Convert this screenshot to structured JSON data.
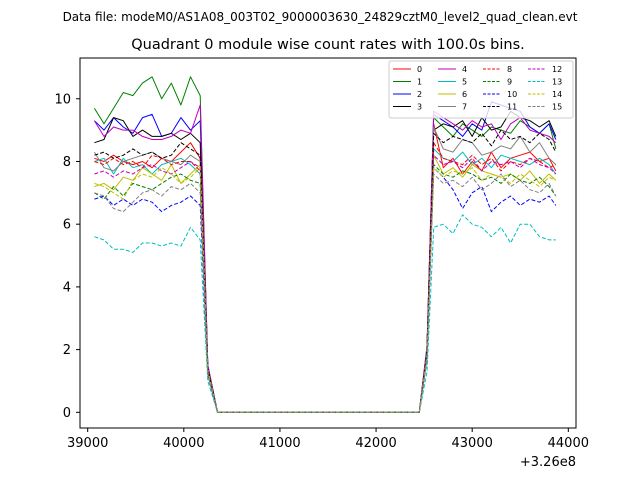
{
  "suptitle": "Data file: modeM0/AS1A08_003T02_9000003630_24829cztM0_level2_quad_clean.evt",
  "chart_data": {
    "type": "line",
    "title": "Quadrant 0 module wise count rates with 100.0s bins.",
    "xlabel": "",
    "ylabel": "",
    "x_offset_label": "+3.26e8",
    "xlim": [
      38920,
      44080
    ],
    "ylim": [
      -0.5,
      11.3
    ],
    "xticks": [
      39000,
      40000,
      41000,
      42000,
      43000,
      44000
    ],
    "xtick_labels": [
      "39000",
      "40000",
      "41000",
      "42000",
      "43000",
      "44000"
    ],
    "yticks": [
      0,
      2,
      4,
      6,
      8,
      10
    ],
    "ytick_labels": [
      "0",
      "2",
      "4",
      "6",
      "8",
      "10"
    ],
    "grid": false,
    "legend": {
      "placement": "top-right",
      "columns": 4
    },
    "x": [
      39070,
      39170,
      39270,
      39370,
      39470,
      39570,
      39670,
      39770,
      39870,
      39970,
      40070,
      40170,
      40250,
      40350,
      42350,
      42450,
      42530,
      42600,
      42700,
      42800,
      42900,
      43000,
      43100,
      43200,
      43300,
      43400,
      43500,
      43600,
      43700,
      43800,
      43870
    ],
    "series": [
      {
        "name": "0",
        "color": "#ff0000",
        "dash": "solid",
        "values": [
          8.1,
          8.0,
          8.2,
          8.0,
          7.9,
          8.0,
          7.8,
          8.1,
          8.0,
          8.3,
          8.6,
          8.1,
          1.4,
          0,
          0,
          0,
          2.0,
          9.2,
          7.8,
          8.1,
          7.6,
          8.0,
          7.7,
          8.3,
          7.8,
          8.1,
          8.2,
          8.3,
          8.0,
          8.1,
          7.7
        ]
      },
      {
        "name": "1",
        "color": "#008000",
        "dash": "solid",
        "values": [
          9.7,
          9.2,
          9.7,
          10.2,
          10.1,
          10.5,
          10.7,
          10.0,
          10.5,
          9.8,
          10.7,
          10.1,
          1.5,
          0,
          0,
          0,
          2.1,
          9.4,
          9.1,
          8.8,
          9.2,
          9.0,
          8.8,
          9.1,
          9.0,
          8.9,
          9.3,
          9.1,
          8.9,
          9.2,
          8.4
        ]
      },
      {
        "name": "2",
        "color": "#0000ff",
        "dash": "solid",
        "values": [
          9.3,
          9.0,
          9.4,
          9.1,
          8.9,
          9.4,
          9.5,
          8.8,
          8.9,
          9.4,
          9.0,
          9.3,
          1.5,
          0,
          0,
          0,
          2.0,
          9.5,
          9.3,
          9.1,
          8.8,
          9.2,
          9.0,
          9.9,
          9.8,
          9.7,
          9.6,
          9.1,
          8.9,
          9.2,
          8.7
        ]
      },
      {
        "name": "3",
        "color": "#000000",
        "dash": "solid",
        "values": [
          8.6,
          8.7,
          9.4,
          9.3,
          8.8,
          9.0,
          8.8,
          8.8,
          8.9,
          8.7,
          8.9,
          8.6,
          1.4,
          0,
          0,
          0,
          2.0,
          9.0,
          9.2,
          9.1,
          9.3,
          8.8,
          9.4,
          9.0,
          9.1,
          9.6,
          9.4,
          9.3,
          9.1,
          9.3,
          8.8
        ]
      },
      {
        "name": "4",
        "color": "#bf00bf",
        "dash": "solid",
        "values": [
          9.3,
          8.8,
          9.1,
          9.0,
          9.0,
          8.8,
          8.7,
          8.7,
          8.8,
          9.0,
          8.9,
          9.8,
          1.5,
          0,
          0,
          0,
          2.1,
          9.6,
          9.4,
          9.2,
          9.0,
          9.3,
          9.1,
          9.2,
          8.7,
          9.2,
          9.4,
          9.0,
          8.9,
          8.8,
          8.6
        ]
      },
      {
        "name": "5",
        "color": "#00bfbf",
        "dash": "solid",
        "values": [
          8.0,
          8.1,
          7.6,
          8.1,
          7.8,
          7.9,
          7.6,
          7.9,
          8.0,
          8.1,
          7.9,
          7.6,
          1.3,
          0,
          0,
          0,
          1.8,
          8.4,
          8.1,
          8.0,
          8.3,
          7.9,
          8.1,
          7.8,
          8.2,
          8.1,
          8.0,
          7.9,
          8.1,
          7.9,
          7.6
        ]
      },
      {
        "name": "6",
        "color": "#bfbf00",
        "dash": "solid",
        "values": [
          7.2,
          7.3,
          7.1,
          7.5,
          7.4,
          7.8,
          7.6,
          7.4,
          7.9,
          7.3,
          7.6,
          7.9,
          1.3,
          0,
          0,
          0,
          1.8,
          8.2,
          7.6,
          7.8,
          7.5,
          7.9,
          7.7,
          7.6,
          7.5,
          7.6,
          7.4,
          7.7,
          7.3,
          7.6,
          7.4
        ]
      },
      {
        "name": "7",
        "color": "#808080",
        "dash": "solid",
        "values": [
          8.3,
          7.8,
          7.7,
          8.0,
          8.1,
          8.2,
          8.3,
          8.1,
          8.0,
          7.9,
          8.2,
          8.0,
          1.4,
          0,
          0,
          0,
          2.0,
          9.1,
          8.4,
          8.3,
          8.7,
          8.6,
          8.2,
          8.3,
          8.5,
          8.4,
          8.8,
          8.3,
          8.6,
          8.1,
          7.9
        ]
      },
      {
        "name": "8",
        "color": "#ff0000",
        "dash": "dashed",
        "values": [
          8.0,
          7.9,
          8.1,
          7.9,
          8.0,
          7.8,
          8.2,
          8.1,
          7.9,
          8.0,
          8.0,
          7.7,
          1.3,
          0,
          0,
          0,
          1.9,
          8.6,
          8.1,
          8.0,
          7.9,
          8.2,
          7.9,
          8.1,
          7.7,
          8.0,
          7.9,
          8.1,
          8.0,
          7.8,
          7.9
        ]
      },
      {
        "name": "9",
        "color": "#008000",
        "dash": "dashed",
        "values": [
          7.0,
          6.8,
          7.2,
          6.9,
          7.3,
          7.2,
          7.1,
          7.3,
          7.5,
          7.6,
          7.4,
          7.3,
          1.2,
          0,
          0,
          0,
          1.7,
          7.9,
          7.6,
          7.5,
          7.7,
          7.6,
          7.4,
          7.5,
          7.3,
          7.6,
          7.4,
          7.3,
          7.5,
          7.2,
          6.9
        ]
      },
      {
        "name": "10",
        "color": "#0000ff",
        "dash": "dashed",
        "values": [
          6.8,
          6.9,
          6.6,
          6.8,
          6.6,
          6.8,
          6.7,
          6.4,
          6.6,
          6.7,
          6.9,
          6.6,
          1.2,
          0,
          0,
          0,
          1.7,
          7.8,
          7.5,
          7.1,
          6.5,
          7.0,
          7.2,
          6.4,
          6.7,
          6.9,
          6.6,
          6.8,
          6.7,
          6.9,
          6.6
        ]
      },
      {
        "name": "11",
        "color": "#000000",
        "dash": "dashed",
        "values": [
          8.2,
          8.3,
          8.1,
          8.2,
          8.4,
          8.2,
          8.3,
          8.1,
          8.2,
          8.6,
          8.4,
          8.2,
          1.4,
          0,
          0,
          0,
          2.0,
          8.9,
          8.6,
          8.8,
          8.7,
          8.6,
          8.9,
          8.5,
          9.0,
          8.7,
          8.8,
          8.6,
          8.9,
          8.7,
          8.3
        ]
      },
      {
        "name": "12",
        "color": "#bf00bf",
        "dash": "dashed",
        "values": [
          7.6,
          7.7,
          7.5,
          7.7,
          7.6,
          7.8,
          7.9,
          7.7,
          7.6,
          7.8,
          8.0,
          7.8,
          1.3,
          0,
          0,
          0,
          1.9,
          8.2,
          7.9,
          8.0,
          7.8,
          8.1,
          7.7,
          8.0,
          7.9,
          8.0,
          7.8,
          8.1,
          7.9,
          7.8,
          7.6
        ]
      },
      {
        "name": "13",
        "color": "#00bfbf",
        "dash": "dashed",
        "values": [
          5.6,
          5.5,
          5.2,
          5.2,
          5.1,
          5.4,
          5.4,
          5.3,
          5.4,
          5.3,
          5.9,
          5.5,
          1.0,
          0,
          0,
          0,
          1.3,
          5.9,
          6.0,
          5.7,
          6.3,
          6.0,
          5.9,
          5.6,
          5.9,
          5.4,
          6.0,
          6.0,
          5.6,
          5.5,
          5.5
        ]
      },
      {
        "name": "14",
        "color": "#bfbf00",
        "dash": "dashed",
        "values": [
          7.3,
          7.2,
          7.0,
          6.8,
          7.4,
          7.6,
          7.5,
          7.8,
          7.6,
          7.3,
          7.5,
          7.8,
          1.3,
          0,
          0,
          0,
          1.8,
          7.8,
          7.5,
          7.7,
          7.6,
          7.8,
          7.4,
          7.6,
          7.5,
          7.3,
          7.6,
          7.4,
          7.2,
          7.5,
          7.4
        ]
      },
      {
        "name": "15",
        "color": "#808080",
        "dash": "dashed",
        "values": [
          7.0,
          6.9,
          6.5,
          6.4,
          6.7,
          7.0,
          7.1,
          6.9,
          7.2,
          7.1,
          7.3,
          7.0,
          1.2,
          0,
          0,
          0,
          1.7,
          7.6,
          7.3,
          7.4,
          7.2,
          7.5,
          7.1,
          7.3,
          7.6,
          7.2,
          7.4,
          7.1,
          7.0,
          7.3,
          6.9
        ]
      }
    ]
  }
}
